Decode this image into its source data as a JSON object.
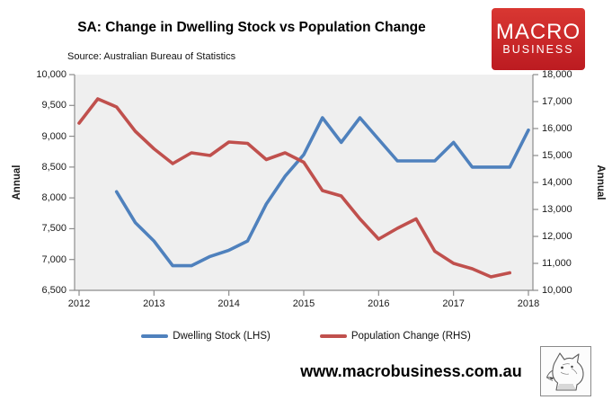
{
  "header": {
    "title": "SA: Change in Dwelling Stock vs Population Change",
    "source": "Source: Australian Bureau of Statistics",
    "logo": {
      "line1": "MACRO",
      "line2": "BUSINESS",
      "bg_color": "#c8252a",
      "text_color": "#ffffff"
    }
  },
  "chart_data": {
    "type": "line",
    "title": "SA: Change in Dwelling Stock vs Population Change",
    "plot_bg": "#efefef",
    "axis_color": "#8c8c8c",
    "grid": "off",
    "legend_position": "bottom",
    "x_axis": {
      "ticks": [
        "2012",
        "2013",
        "2014",
        "2015",
        "2016",
        "2017",
        "2018"
      ],
      "min": 2012,
      "max": 2018
    },
    "left_axis": {
      "label": "Annual",
      "min": 6500,
      "max": 10000,
      "tick_step": 500,
      "ticks": [
        "10,000",
        "9,500",
        "9,000",
        "8,500",
        "8,000",
        "7,500",
        "7,000",
        "6,500"
      ]
    },
    "right_axis": {
      "label": "Annual",
      "min": 10000,
      "max": 18000,
      "tick_step": 1000,
      "ticks": [
        "18,000",
        "17,000",
        "16,000",
        "15,000",
        "14,000",
        "13,000",
        "12,000",
        "11,000",
        "10,000"
      ]
    },
    "series": [
      {
        "name": "Dwelling Stock (LHS)",
        "axis": "left",
        "color": "#4f81bd",
        "x": [
          2012.5,
          2012.75,
          2013.0,
          2013.25,
          2013.5,
          2013.75,
          2014.0,
          2014.25,
          2014.5,
          2014.75,
          2015.0,
          2015.25,
          2015.5,
          2015.75,
          2016.0,
          2016.25,
          2016.5,
          2016.75,
          2017.0,
          2017.25,
          2017.5,
          2017.75,
          2018.0
        ],
        "values": [
          8100,
          7600,
          7300,
          6900,
          6900,
          7050,
          7150,
          7300,
          7900,
          8350,
          8700,
          9300,
          8900,
          9300,
          8950,
          8600,
          8600,
          8600,
          8900,
          8500,
          8500,
          8500,
          9100
        ]
      },
      {
        "name": "Population Change (RHS)",
        "axis": "right",
        "color": "#c0504d",
        "x": [
          2012.0,
          2012.25,
          2012.5,
          2012.75,
          2013.0,
          2013.25,
          2013.5,
          2013.75,
          2014.0,
          2014.25,
          2014.5,
          2014.75,
          2015.0,
          2015.25,
          2015.5,
          2015.75,
          2016.0,
          2016.25,
          2016.5,
          2016.75,
          2017.0,
          2017.25,
          2017.5,
          2017.75
        ],
        "values": [
          16200,
          17100,
          16800,
          15900,
          15250,
          14700,
          15100,
          15000,
          15500,
          15450,
          14850,
          15100,
          14750,
          13700,
          13500,
          12650,
          11900,
          12300,
          12650,
          11450,
          11000,
          10800,
          10500,
          10650
        ]
      }
    ]
  },
  "footer": {
    "website": "www.macrobusiness.com.au",
    "logo_name": "wolf-etching-logo"
  }
}
